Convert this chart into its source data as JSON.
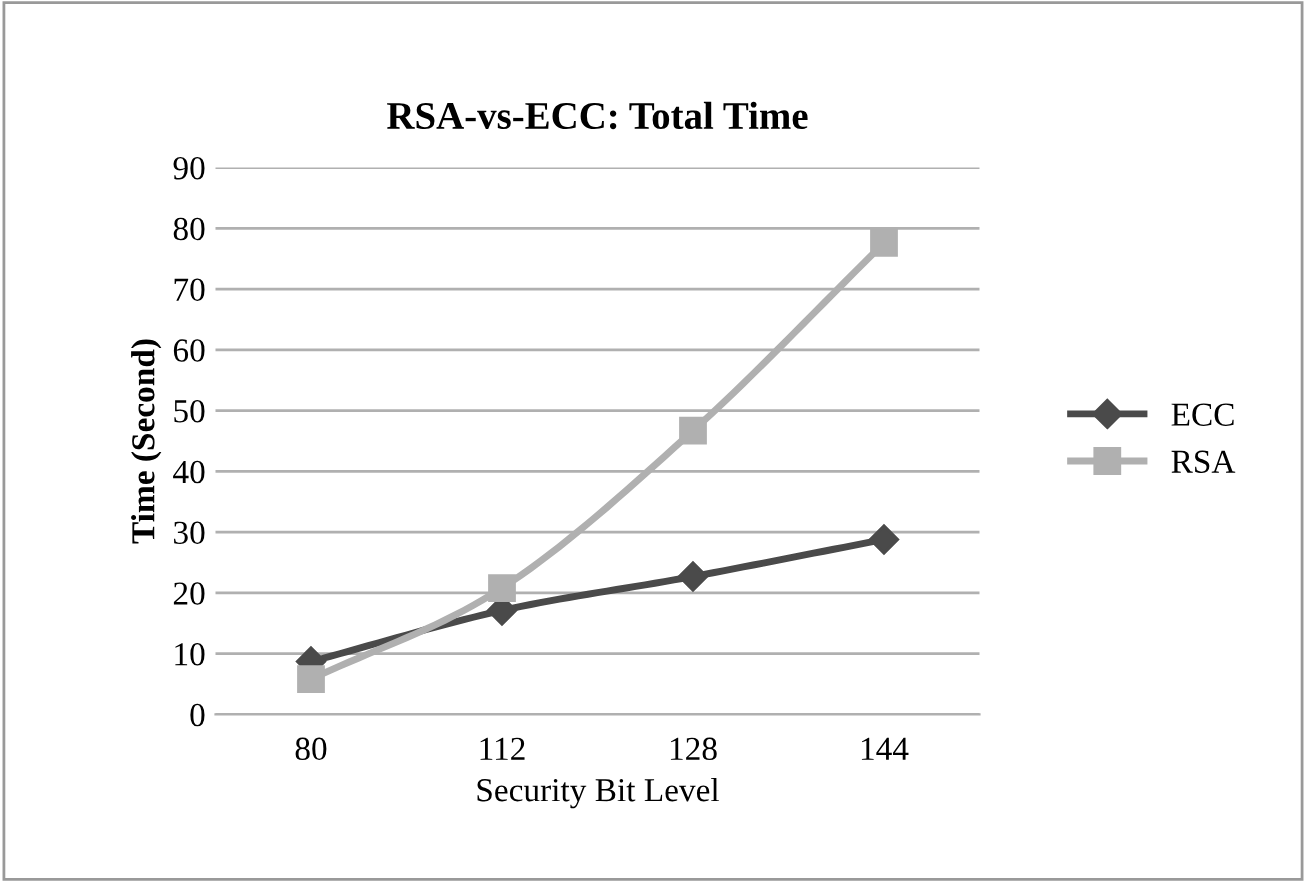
{
  "chart_data": {
    "type": "line",
    "title": "RSA-vs-ECC: Total Time",
    "xlabel": "Security Bit Level",
    "ylabel": "Time (Second)",
    "categories": [
      "80",
      "112",
      "128",
      "144"
    ],
    "series": [
      {
        "name": "ECC",
        "color": "#4a4a4a",
        "marker": "diamond",
        "values": [
          8.7,
          17.1,
          22.7,
          28.8
        ]
      },
      {
        "name": "RSA",
        "color": "#b0b0b0",
        "marker": "square",
        "values": [
          5.8,
          20.8,
          46.7,
          77.6
        ]
      }
    ],
    "ylim": [
      0,
      90
    ],
    "yticks": [
      0,
      10,
      20,
      30,
      40,
      50,
      60,
      70,
      80,
      90
    ],
    "grid": "y",
    "legend": "right",
    "line_style": "solid"
  }
}
